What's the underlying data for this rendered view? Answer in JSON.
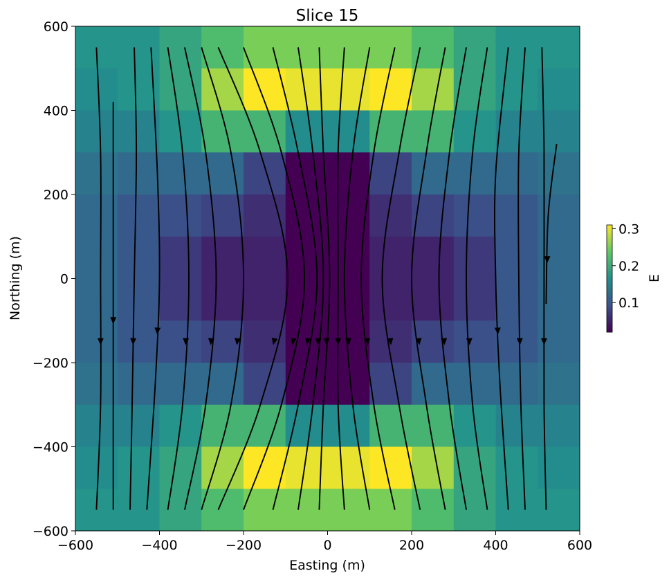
{
  "chart_data": {
    "type": "heatmap",
    "title": "Slice 15",
    "xlabel": "Easting (m)",
    "ylabel": "Northing (m)",
    "xlim": [
      -600,
      600
    ],
    "ylim": [
      -600,
      600
    ],
    "xticks": [
      -600,
      -400,
      -200,
      0,
      200,
      400,
      600
    ],
    "yticks": [
      -600,
      -400,
      -200,
      0,
      200,
      400,
      600
    ],
    "xtick_labels": [
      "−600",
      "−400",
      "−200",
      "0",
      "200",
      "400",
      "600"
    ],
    "ytick_labels": [
      "−600",
      "−400",
      "−200",
      "0",
      "200",
      "400",
      "600"
    ],
    "cell_size": 100,
    "x_centers": [
      -550,
      -450,
      -350,
      -250,
      -150,
      -50,
      50,
      150,
      250,
      350,
      450,
      550
    ],
    "y_centers": [
      550,
      450,
      350,
      250,
      150,
      50,
      -50,
      -150,
      -250,
      -350,
      -450,
      -550
    ],
    "values": [
      [
        0.17,
        0.17,
        0.19,
        0.22,
        0.25,
        0.25,
        0.25,
        0.25,
        0.22,
        0.19,
        0.17,
        0.17
      ],
      [
        0.16,
        0.17,
        0.19,
        0.27,
        0.31,
        0.3,
        0.3,
        0.31,
        0.27,
        0.19,
        0.17,
        0.16
      ],
      [
        0.15,
        0.15,
        0.17,
        0.21,
        0.21,
        0.16,
        0.16,
        0.21,
        0.21,
        0.17,
        0.15,
        0.15
      ],
      [
        0.13,
        0.12,
        0.12,
        0.12,
        0.08,
        0.02,
        0.02,
        0.08,
        0.12,
        0.12,
        0.12,
        0.13
      ],
      [
        0.12,
        0.1,
        0.09,
        0.08,
        0.06,
        0.02,
        0.02,
        0.06,
        0.08,
        0.09,
        0.1,
        0.12
      ],
      [
        0.12,
        0.1,
        0.07,
        0.05,
        0.05,
        0.02,
        0.02,
        0.05,
        0.05,
        0.07,
        0.1,
        0.12
      ],
      [
        0.12,
        0.1,
        0.07,
        0.05,
        0.05,
        0.02,
        0.02,
        0.05,
        0.05,
        0.07,
        0.1,
        0.12
      ],
      [
        0.12,
        0.1,
        0.09,
        0.08,
        0.06,
        0.02,
        0.02,
        0.06,
        0.08,
        0.09,
        0.1,
        0.12
      ],
      [
        0.13,
        0.12,
        0.12,
        0.12,
        0.08,
        0.02,
        0.02,
        0.08,
        0.12,
        0.12,
        0.12,
        0.13
      ],
      [
        0.15,
        0.15,
        0.17,
        0.21,
        0.21,
        0.16,
        0.16,
        0.21,
        0.21,
        0.17,
        0.15,
        0.15
      ],
      [
        0.16,
        0.17,
        0.19,
        0.27,
        0.31,
        0.3,
        0.3,
        0.31,
        0.27,
        0.19,
        0.17,
        0.16
      ],
      [
        0.17,
        0.17,
        0.19,
        0.22,
        0.25,
        0.25,
        0.25,
        0.25,
        0.22,
        0.19,
        0.17,
        0.17
      ]
    ],
    "colormap": "viridis",
    "colorbar": {
      "label": "E",
      "min": 0.02,
      "max": 0.31,
      "ticks": [
        0.1,
        0.2,
        0.3
      ],
      "tick_labels": [
        "0.1",
        "0.2",
        "0.3"
      ],
      "placement": "right"
    },
    "streamlines": [
      [
        [
          -550,
          550
        ],
        [
          -540,
          300
        ],
        [
          -540,
          0
        ],
        [
          -540,
          -300
        ],
        [
          -550,
          -550
        ]
      ],
      [
        [
          -510,
          420
        ],
        [
          -510,
          200
        ],
        [
          -510,
          0
        ],
        [
          -510,
          -200
        ],
        [
          -510,
          -550
        ]
      ],
      [
        [
          -460,
          550
        ],
        [
          -455,
          300
        ],
        [
          -460,
          0
        ],
        [
          -465,
          -300
        ],
        [
          -470,
          -550
        ]
      ],
      [
        [
          -420,
          550
        ],
        [
          -405,
          250
        ],
        [
          -400,
          0
        ],
        [
          -410,
          -250
        ],
        [
          -430,
          -550
        ]
      ],
      [
        [
          -380,
          550
        ],
        [
          -345,
          300
        ],
        [
          -330,
          0
        ],
        [
          -345,
          -300
        ],
        [
          -380,
          -550
        ]
      ],
      [
        [
          -340,
          550
        ],
        [
          -290,
          300
        ],
        [
          -265,
          0
        ],
        [
          -290,
          -300
        ],
        [
          -340,
          -550
        ]
      ],
      [
        [
          -300,
          550
        ],
        [
          -230,
          300
        ],
        [
          -200,
          0
        ],
        [
          -230,
          -300
        ],
        [
          -300,
          -550
        ]
      ],
      [
        [
          -260,
          550
        ],
        [
          -160,
          300
        ],
        [
          -95,
          0
        ],
        [
          -160,
          -300
        ],
        [
          -260,
          -550
        ]
      ],
      [
        [
          -200,
          550
        ],
        [
          -110,
          300
        ],
        [
          -55,
          0
        ],
        [
          -110,
          -300
        ],
        [
          -200,
          -550
        ]
      ],
      [
        [
          -130,
          550
        ],
        [
          -70,
          300
        ],
        [
          -25,
          0
        ],
        [
          -70,
          -300
        ],
        [
          -130,
          -550
        ]
      ],
      [
        [
          -70,
          550
        ],
        [
          -35,
          300
        ],
        [
          -10,
          0
        ],
        [
          -35,
          -300
        ],
        [
          -70,
          -550
        ]
      ],
      [
        [
          -20,
          550
        ],
        [
          -10,
          300
        ],
        [
          5,
          0
        ],
        [
          -10,
          -300
        ],
        [
          -20,
          -550
        ]
      ],
      [
        [
          40,
          550
        ],
        [
          25,
          300
        ],
        [
          25,
          0
        ],
        [
          25,
          -300
        ],
        [
          40,
          -550
        ]
      ],
      [
        [
          100,
          550
        ],
        [
          60,
          300
        ],
        [
          40,
          0
        ],
        [
          60,
          -300
        ],
        [
          100,
          -550
        ]
      ],
      [
        [
          160,
          550
        ],
        [
          110,
          300
        ],
        [
          80,
          0
        ],
        [
          110,
          -300
        ],
        [
          160,
          -550
        ]
      ],
      [
        [
          220,
          550
        ],
        [
          170,
          300
        ],
        [
          130,
          0
        ],
        [
          170,
          -300
        ],
        [
          220,
          -550
        ]
      ],
      [
        [
          280,
          550
        ],
        [
          235,
          300
        ],
        [
          200,
          0
        ],
        [
          235,
          -300
        ],
        [
          280,
          -550
        ]
      ],
      [
        [
          330,
          550
        ],
        [
          290,
          300
        ],
        [
          265,
          0
        ],
        [
          290,
          -300
        ],
        [
          330,
          -550
        ]
      ],
      [
        [
          380,
          550
        ],
        [
          345,
          300
        ],
        [
          330,
          0
        ],
        [
          345,
          -300
        ],
        [
          380,
          -550
        ]
      ],
      [
        [
          430,
          550
        ],
        [
          400,
          250
        ],
        [
          400,
          0
        ],
        [
          410,
          -250
        ],
        [
          430,
          -550
        ]
      ],
      [
        [
          470,
          550
        ],
        [
          455,
          300
        ],
        [
          455,
          0
        ],
        [
          460,
          -300
        ],
        [
          470,
          -550
        ]
      ],
      [
        [
          510,
          550
        ],
        [
          515,
          300
        ],
        [
          515,
          0
        ],
        [
          515,
          -300
        ],
        [
          520,
          -550
        ]
      ],
      [
        [
          545,
          320
        ],
        [
          525,
          150
        ],
        [
          520,
          -60
        ]
      ]
    ]
  }
}
